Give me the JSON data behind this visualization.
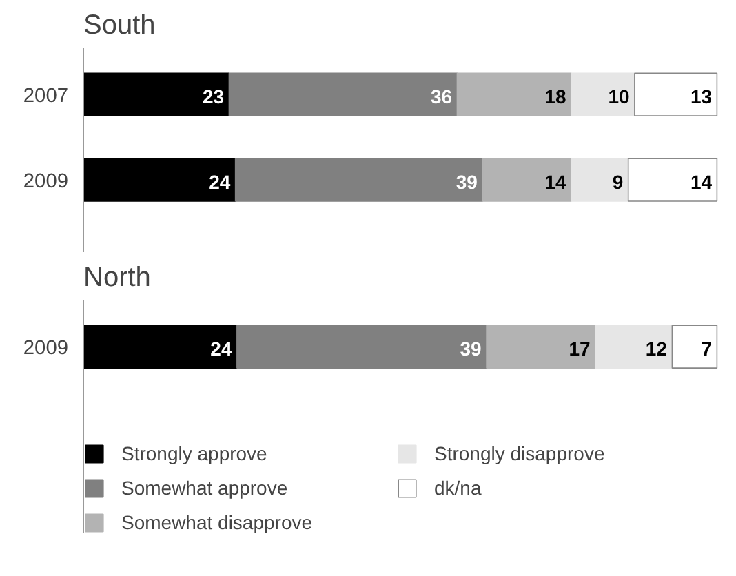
{
  "chart_data": [
    {
      "type": "bar",
      "orientation": "horizontal",
      "stacked": true,
      "data_labels": true,
      "title": "South",
      "categories": [
        "2007",
        "2009"
      ],
      "legend": false,
      "series": [
        {
          "color": "#000000",
          "values": [
            23,
            24
          ]
        },
        {
          "color": "#808080",
          "values": [
            36,
            39
          ]
        },
        {
          "color": "#b3b3b3",
          "values": [
            18,
            14
          ]
        },
        {
          "color": "#e6e6e6",
          "values": [
            10,
            9
          ]
        },
        {
          "color": "#ffffff",
          "values": [
            13,
            14
          ]
        }
      ]
    },
    {
      "type": "bar",
      "orientation": "horizontal",
      "stacked": true,
      "data_labels": true,
      "title": "North",
      "categories": [
        "2009"
      ],
      "legend": "bottom",
      "series": [
        {
          "name": "Strongly approve",
          "color": "#000000",
          "values": [
            24
          ]
        },
        {
          "name": "Somewhat approve",
          "color": "#808080",
          "values": [
            39
          ]
        },
        {
          "name": "Somewhat disapprove",
          "color": "#b3b3b3",
          "values": [
            17
          ]
        },
        {
          "name": "Strongly disapprove",
          "color": "#e6e6e6",
          "values": [
            12
          ]
        },
        {
          "name": "dk/na",
          "color": "#ffffff",
          "values": [
            7
          ]
        }
      ]
    }
  ]
}
